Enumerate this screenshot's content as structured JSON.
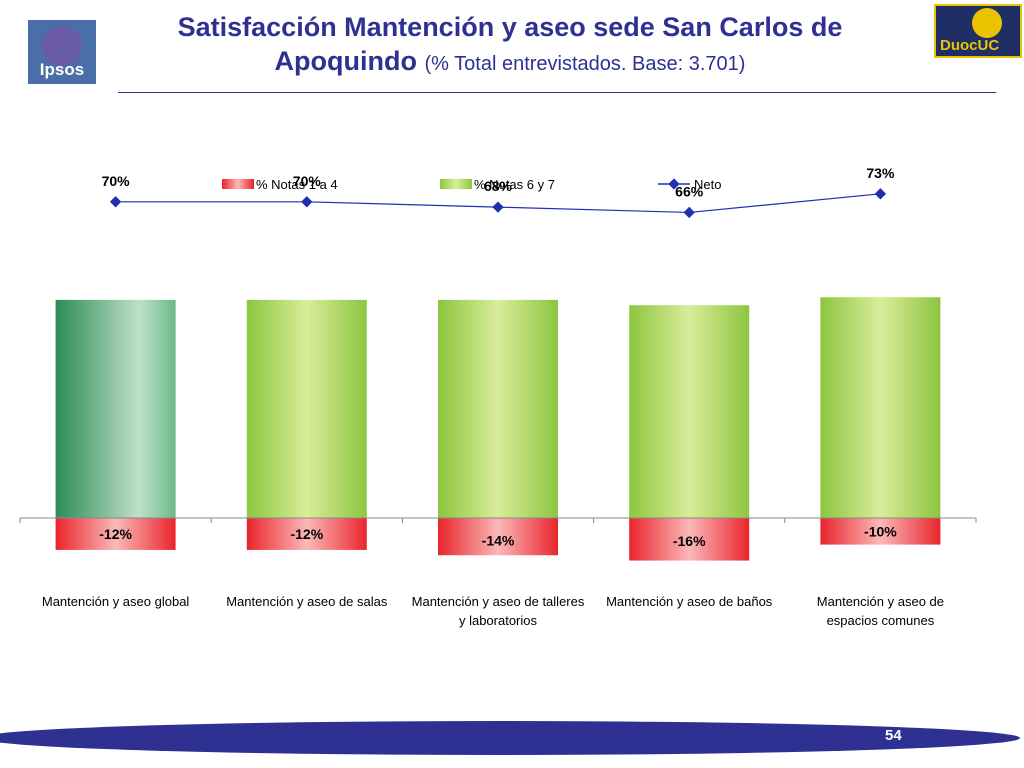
{
  "slide": {
    "title_main": "Satisfacción Mantención y aseo sede San Carlos de Apoquindo",
    "title_sub": "(% Total entrevistados. Base: 3.701)",
    "page_number": "54"
  },
  "logos": {
    "ipsos": "Ipsos",
    "duoc": "DuocUC"
  },
  "colors": {
    "title": "#2e3192",
    "neg_bar": "#e8252c",
    "pos_bar": "#8cc63f",
    "pos_bar_first": "#2e8b57",
    "neto_line": "#1f2fb0",
    "footer": "#2e3192"
  },
  "chart_data": {
    "type": "bar",
    "categories": [
      [
        "Mantención y aseo global"
      ],
      [
        "Mantención y aseo de salas"
      ],
      [
        "Mantención y aseo de talleres",
        "y laboratorios"
      ],
      [
        "Mantención y aseo de baños"
      ],
      [
        "Mantención y aseo de",
        "espacios comunes"
      ]
    ],
    "series": [
      {
        "name": "% Notas 1 a 4",
        "type": "bar",
        "values": [
          -12,
          -12,
          -14,
          -16,
          -10
        ],
        "labels": [
          "-12%",
          "-12%",
          "-14%",
          "-16%",
          "-10%"
        ]
      },
      {
        "name": "% Notas 6 y 7",
        "type": "bar",
        "values": [
          82,
          82,
          82,
          80,
          83
        ]
      },
      {
        "name": "Neto",
        "type": "line",
        "values": [
          70,
          70,
          68,
          66,
          73
        ],
        "labels": [
          "70%",
          "70%",
          "68%",
          "66%",
          "73%"
        ]
      }
    ],
    "legend_position": "top",
    "gridlines": false
  }
}
